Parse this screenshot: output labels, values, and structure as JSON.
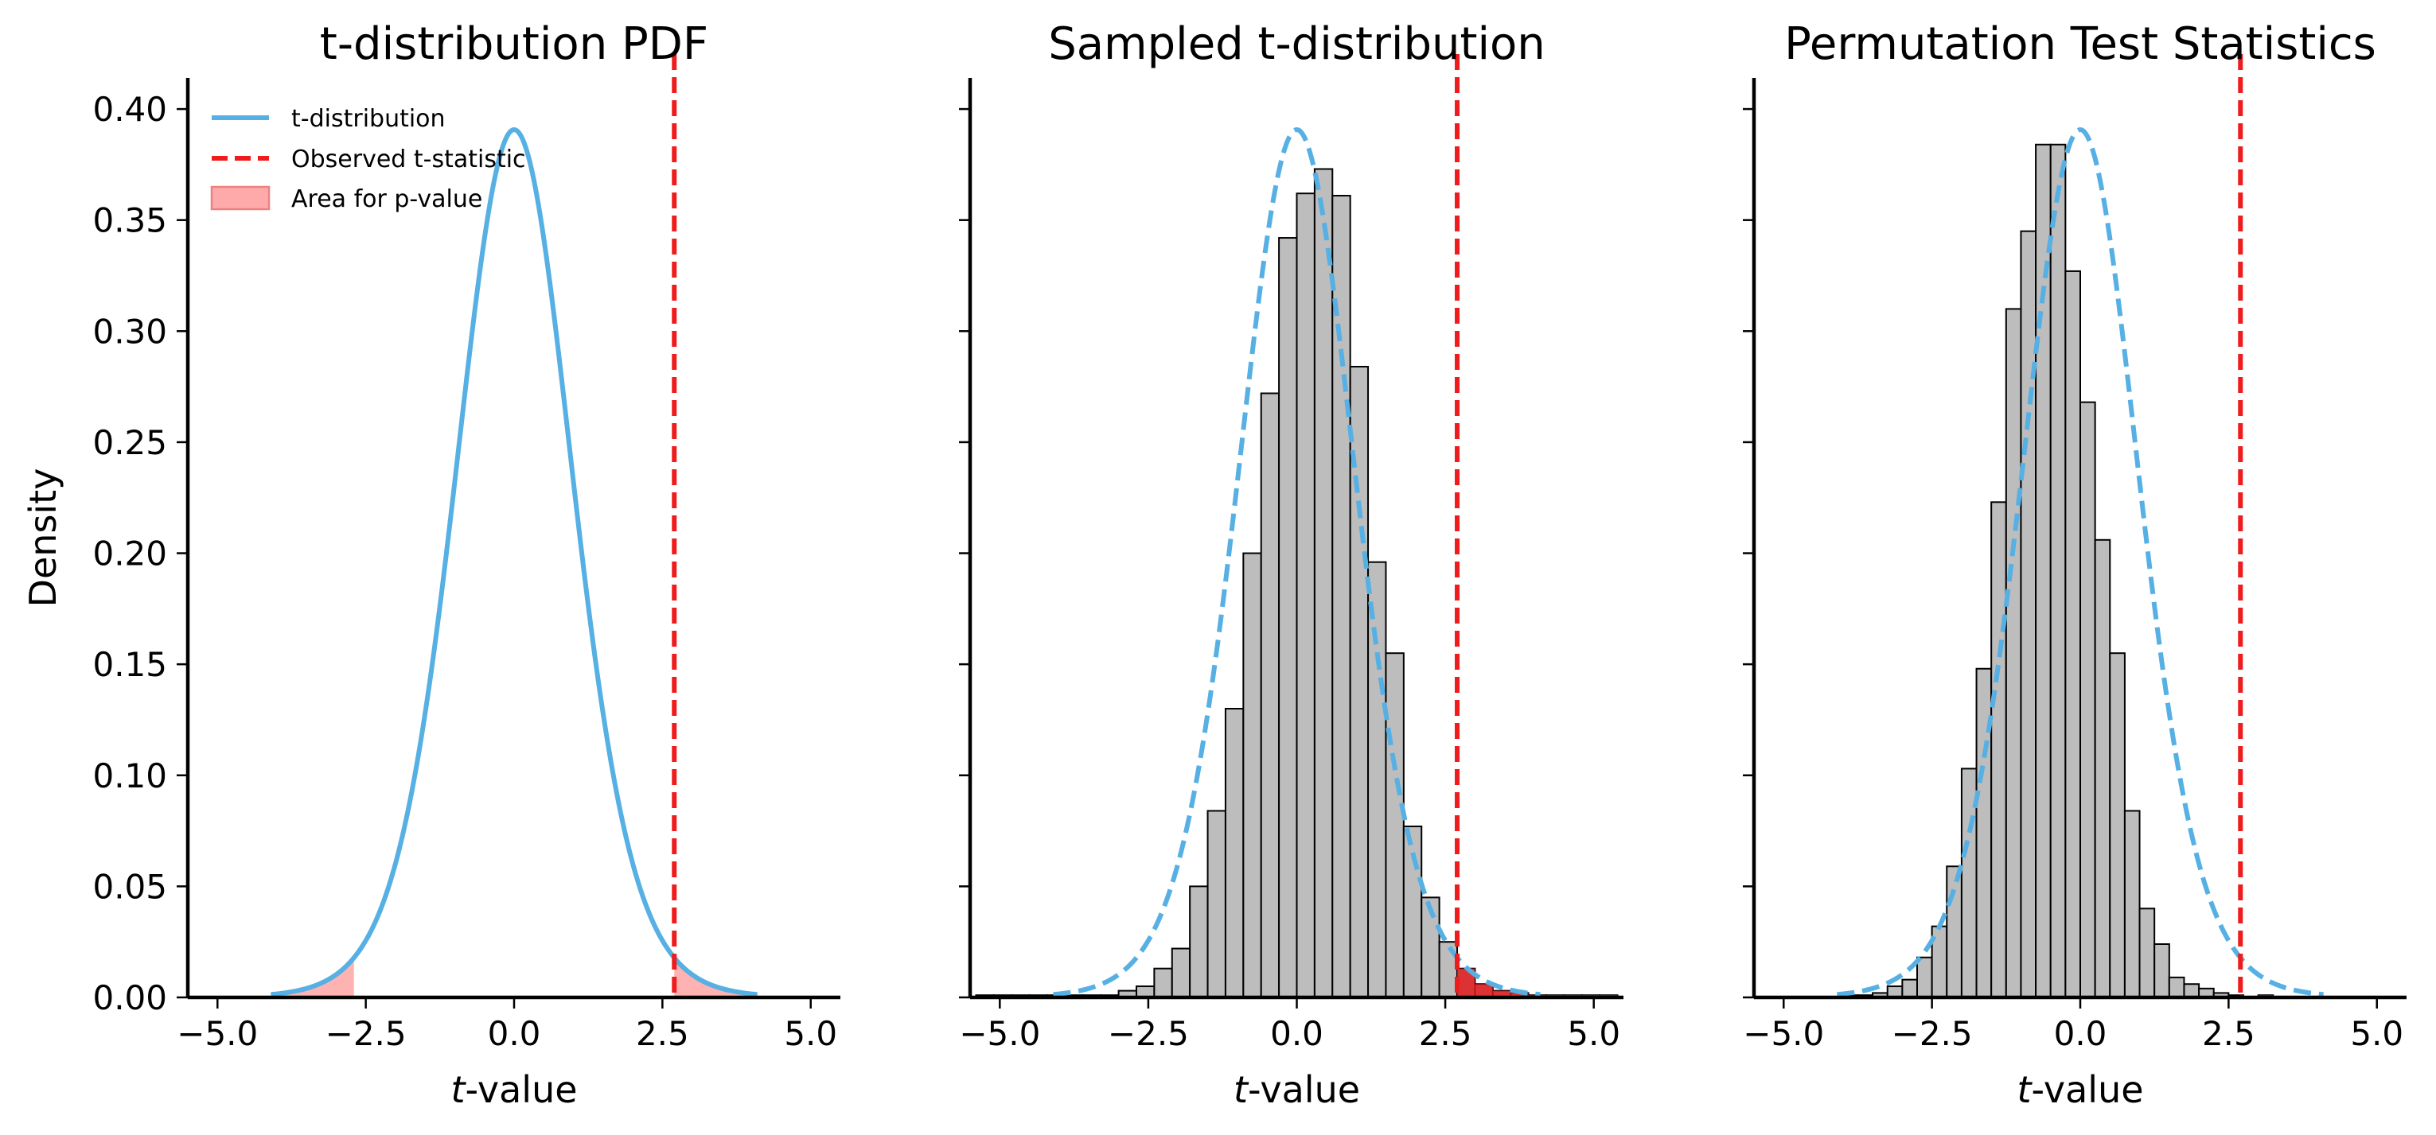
{
  "colors": {
    "curve": "#56b0e3",
    "observed": "#ee1c1c",
    "area_fill": "#ffaaaa",
    "area_edge": "#f08080",
    "bar_fill": "#bdbdbd",
    "bar_edge": "#000000",
    "hist_tail": "#e31a1c"
  },
  "chart_data": [
    {
      "type": "line",
      "title": "t-distribution PDF",
      "xlabel_italic": "t",
      "xlabel_rest": "-value",
      "ylabel": "Density",
      "xlim": [
        -5.5,
        5.5
      ],
      "ylim": [
        0,
        0.414
      ],
      "xticks": [
        -5.0,
        -2.5,
        0.0,
        2.5,
        5.0
      ],
      "xtick_labels": [
        "−5.0",
        "−2.5",
        "0.0",
        "2.5",
        "5.0"
      ],
      "yticks": [
        0.0,
        0.05,
        0.1,
        0.15,
        0.2,
        0.25,
        0.3,
        0.35,
        0.4
      ],
      "ytick_labels": [
        "0.00",
        "0.05",
        "0.10",
        "0.15",
        "0.20",
        "0.25",
        "0.30",
        "0.35",
        "0.40"
      ],
      "show_ytick_labels": true,
      "curve": {
        "dof": 12,
        "x_range": [
          -4.1,
          4.1
        ],
        "style": "solid"
      },
      "observed_t": 2.7,
      "shade_area": true,
      "legend": {
        "position": "upper-left",
        "entries": [
          "t-distribution",
          "Observed t-statistic",
          "Area for p-value"
        ]
      }
    },
    {
      "type": "bar",
      "title": "Sampled t-distribution",
      "xlabel_italic": "t",
      "xlabel_rest": "-value",
      "xlim": [
        -5.5,
        5.5
      ],
      "ylim": [
        0,
        0.414
      ],
      "xticks": [
        -5.0,
        -2.5,
        0.0,
        2.5,
        5.0
      ],
      "xtick_labels": [
        "−5.0",
        "−2.5",
        "0.0",
        "2.5",
        "5.0"
      ],
      "yticks": [
        0.0,
        0.05,
        0.1,
        0.15,
        0.2,
        0.25,
        0.3,
        0.35,
        0.4
      ],
      "show_ytick_labels": false,
      "curve": {
        "dof": 12,
        "x_range": [
          -4.1,
          4.1
        ],
        "style": "dashed"
      },
      "observed_t": 2.7,
      "bins": {
        "start": -5.4,
        "width": 0.3,
        "values": [
          0.001,
          0.001,
          0.001,
          0.001,
          0.001,
          0.001,
          0.001,
          0.001,
          0.003,
          0.005,
          0.013,
          0.022,
          0.05,
          0.084,
          0.13,
          0.2,
          0.272,
          0.342,
          0.362,
          0.373,
          0.361,
          0.284,
          0.196,
          0.155,
          0.077,
          0.045,
          0.025,
          0.013,
          0.006,
          0.003,
          0.002,
          0.001,
          0.001,
          0.001,
          0.001,
          0.001
        ]
      }
    },
    {
      "type": "bar",
      "title": "Permutation Test Statistics",
      "xlabel_italic": "t",
      "xlabel_rest": "-value",
      "xlim": [
        -5.5,
        5.5
      ],
      "ylim": [
        0,
        0.414
      ],
      "xticks": [
        -5.0,
        -2.5,
        0.0,
        2.5,
        5.0
      ],
      "xtick_labels": [
        "−5.0",
        "−2.5",
        "0.0",
        "2.5",
        "5.0"
      ],
      "yticks": [
        0.0,
        0.05,
        0.1,
        0.15,
        0.2,
        0.25,
        0.3,
        0.35,
        0.4
      ],
      "show_ytick_labels": false,
      "curve": {
        "dof": 12,
        "x_range": [
          -4.1,
          4.1
        ],
        "style": "dashed"
      },
      "observed_t": 2.7,
      "bins": {
        "start": -5.0,
        "width": 0.25,
        "values": [
          0.0,
          0.0,
          0.0,
          0.0,
          0.001,
          0.001,
          0.002,
          0.005,
          0.008,
          0.018,
          0.032,
          0.059,
          0.103,
          0.148,
          0.223,
          0.31,
          0.345,
          0.384,
          0.384,
          0.327,
          0.268,
          0.206,
          0.155,
          0.084,
          0.04,
          0.024,
          0.009,
          0.006,
          0.004,
          0.002,
          0.001,
          0.0,
          0.001,
          0.0,
          0.0,
          0.0,
          0.0,
          0.0,
          0.0,
          0.0
        ]
      }
    }
  ]
}
